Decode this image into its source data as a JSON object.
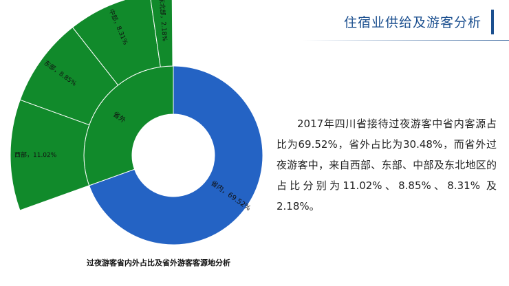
{
  "header": {
    "title": "住宿业供给及游客分析"
  },
  "chart_data": {
    "type": "sunburst",
    "caption": "过夜游客省内外占比及省外游客客源地分析",
    "inner": [
      {
        "name": "省内",
        "value": 69.52,
        "label": "省内，69.52%",
        "color": "#2463c4"
      },
      {
        "name": "省外",
        "value": 30.48,
        "label": "省外",
        "color": "#118a2b"
      }
    ],
    "outer": [
      {
        "name": "西部",
        "value": 11.02,
        "label": "西部，11.02%",
        "parent": "省外",
        "color": "#118a2b"
      },
      {
        "name": "东部",
        "value": 8.85,
        "label": "东部，8.85%",
        "parent": "省外",
        "color": "#118a2b"
      },
      {
        "name": "中部",
        "value": 8.31,
        "label": "中部，8.31%",
        "parent": "省外",
        "color": "#118a2b"
      },
      {
        "name": "东北部",
        "value": 2.18,
        "label": "东北部，2.18%",
        "parent": "省外",
        "color": "#118a2b"
      }
    ],
    "unit": "%"
  },
  "description": "2017年四川省接待过夜游客中省内客源占比为69.52%，省外占比为30.48%，而省外过夜游客中，来自西部、东部、中部及东北地区的占比分别为11.02%、8.85%、8.31% 及2.18%。"
}
